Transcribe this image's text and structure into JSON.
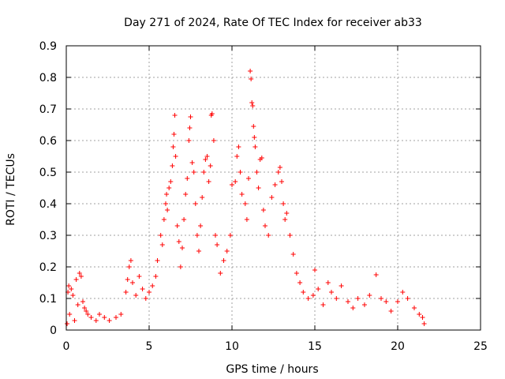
{
  "chart_data": {
    "type": "scatter",
    "title": "Day 271 of 2024, Rate Of TEC Index for receiver ab33",
    "xlabel": "GPS time / hours",
    "ylabel": "ROTI / TECUs",
    "xlim": [
      0,
      25
    ],
    "ylim": [
      0,
      0.9
    ],
    "xticks": [
      0,
      5,
      10,
      15,
      20,
      25
    ],
    "yticks": [
      0,
      0.1,
      0.2,
      0.3,
      0.4,
      0.5,
      0.6,
      0.7,
      0.8,
      0.9
    ],
    "xtick_labels": [
      "0",
      "5",
      "10",
      "15",
      "20",
      "25"
    ],
    "ytick_labels": [
      "0",
      "0.1",
      "0.2",
      "0.3",
      "0.4",
      "0.5",
      "0.6",
      "0.7",
      "0.8",
      "0.9"
    ],
    "grid": true,
    "marker": "+",
    "color": "#ff0000",
    "series": [
      {
        "points": [
          [
            0.05,
            0.02
          ],
          [
            0.1,
            0.12
          ],
          [
            0.15,
            0.14
          ],
          [
            0.2,
            0.05
          ],
          [
            0.3,
            0.13
          ],
          [
            0.4,
            0.11
          ],
          [
            0.5,
            0.03
          ],
          [
            0.6,
            0.16
          ],
          [
            0.7,
            0.08
          ],
          [
            0.8,
            0.18
          ],
          [
            0.9,
            0.17
          ],
          [
            1.0,
            0.09
          ],
          [
            1.1,
            0.07
          ],
          [
            1.2,
            0.06
          ],
          [
            1.3,
            0.05
          ],
          [
            1.5,
            0.04
          ],
          [
            1.8,
            0.03
          ],
          [
            2.0,
            0.05
          ],
          [
            2.3,
            0.04
          ],
          [
            2.6,
            0.03
          ],
          [
            3.0,
            0.04
          ],
          [
            3.3,
            0.05
          ],
          [
            3.6,
            0.12
          ],
          [
            3.7,
            0.16
          ],
          [
            3.8,
            0.2
          ],
          [
            3.9,
            0.22
          ],
          [
            4.0,
            0.15
          ],
          [
            4.2,
            0.11
          ],
          [
            4.4,
            0.17
          ],
          [
            4.6,
            0.13
          ],
          [
            4.8,
            0.1
          ],
          [
            5.0,
            0.12
          ],
          [
            5.2,
            0.14
          ],
          [
            5.4,
            0.17
          ],
          [
            5.5,
            0.22
          ],
          [
            5.7,
            0.3
          ],
          [
            5.8,
            0.27
          ],
          [
            5.9,
            0.35
          ],
          [
            6.0,
            0.4
          ],
          [
            6.05,
            0.43
          ],
          [
            6.1,
            0.38
          ],
          [
            6.2,
            0.45
          ],
          [
            6.3,
            0.47
          ],
          [
            6.4,
            0.52
          ],
          [
            6.45,
            0.58
          ],
          [
            6.5,
            0.62
          ],
          [
            6.55,
            0.68
          ],
          [
            6.6,
            0.55
          ],
          [
            6.7,
            0.33
          ],
          [
            6.8,
            0.28
          ],
          [
            6.9,
            0.2
          ],
          [
            7.0,
            0.26
          ],
          [
            7.1,
            0.35
          ],
          [
            7.2,
            0.43
          ],
          [
            7.3,
            0.48
          ],
          [
            7.4,
            0.6
          ],
          [
            7.45,
            0.64
          ],
          [
            7.5,
            0.675
          ],
          [
            7.6,
            0.53
          ],
          [
            7.7,
            0.5
          ],
          [
            7.8,
            0.4
          ],
          [
            7.9,
            0.3
          ],
          [
            8.0,
            0.25
          ],
          [
            8.1,
            0.33
          ],
          [
            8.2,
            0.42
          ],
          [
            8.3,
            0.5
          ],
          [
            8.4,
            0.54
          ],
          [
            8.5,
            0.55
          ],
          [
            8.6,
            0.47
          ],
          [
            8.7,
            0.52
          ],
          [
            8.75,
            0.68
          ],
          [
            8.8,
            0.685
          ],
          [
            8.9,
            0.6
          ],
          [
            9.0,
            0.3
          ],
          [
            9.1,
            0.27
          ],
          [
            9.3,
            0.18
          ],
          [
            9.5,
            0.22
          ],
          [
            9.7,
            0.25
          ],
          [
            9.9,
            0.3
          ],
          [
            10.0,
            0.46
          ],
          [
            10.2,
            0.47
          ],
          [
            10.3,
            0.55
          ],
          [
            10.4,
            0.58
          ],
          [
            10.5,
            0.5
          ],
          [
            10.6,
            0.43
          ],
          [
            10.8,
            0.4
          ],
          [
            10.9,
            0.35
          ],
          [
            11.0,
            0.48
          ],
          [
            11.1,
            0.82
          ],
          [
            11.15,
            0.795
          ],
          [
            11.2,
            0.72
          ],
          [
            11.25,
            0.71
          ],
          [
            11.3,
            0.645
          ],
          [
            11.35,
            0.61
          ],
          [
            11.4,
            0.58
          ],
          [
            11.5,
            0.5
          ],
          [
            11.6,
            0.45
          ],
          [
            11.7,
            0.54
          ],
          [
            11.8,
            0.545
          ],
          [
            11.9,
            0.38
          ],
          [
            12.0,
            0.33
          ],
          [
            12.2,
            0.3
          ],
          [
            12.4,
            0.42
          ],
          [
            12.6,
            0.46
          ],
          [
            12.8,
            0.5
          ],
          [
            12.9,
            0.515
          ],
          [
            13.0,
            0.47
          ],
          [
            13.1,
            0.4
          ],
          [
            13.2,
            0.35
          ],
          [
            13.3,
            0.37
          ],
          [
            13.5,
            0.3
          ],
          [
            13.7,
            0.24
          ],
          [
            13.9,
            0.18
          ],
          [
            14.1,
            0.15
          ],
          [
            14.3,
            0.12
          ],
          [
            14.6,
            0.1
          ],
          [
            14.9,
            0.11
          ],
          [
            15.0,
            0.19
          ],
          [
            15.2,
            0.13
          ],
          [
            15.5,
            0.08
          ],
          [
            15.8,
            0.15
          ],
          [
            16.0,
            0.12
          ],
          [
            16.3,
            0.1
          ],
          [
            16.6,
            0.14
          ],
          [
            17.0,
            0.09
          ],
          [
            17.3,
            0.07
          ],
          [
            17.6,
            0.1
          ],
          [
            18.0,
            0.08
          ],
          [
            18.3,
            0.11
          ],
          [
            18.7,
            0.175
          ],
          [
            19.0,
            0.1
          ],
          [
            19.3,
            0.09
          ],
          [
            19.6,
            0.06
          ],
          [
            20.0,
            0.09
          ],
          [
            20.3,
            0.12
          ],
          [
            20.6,
            0.1
          ],
          [
            21.0,
            0.07
          ],
          [
            21.3,
            0.05
          ],
          [
            21.5,
            0.04
          ],
          [
            21.6,
            0.02
          ]
        ]
      }
    ]
  }
}
